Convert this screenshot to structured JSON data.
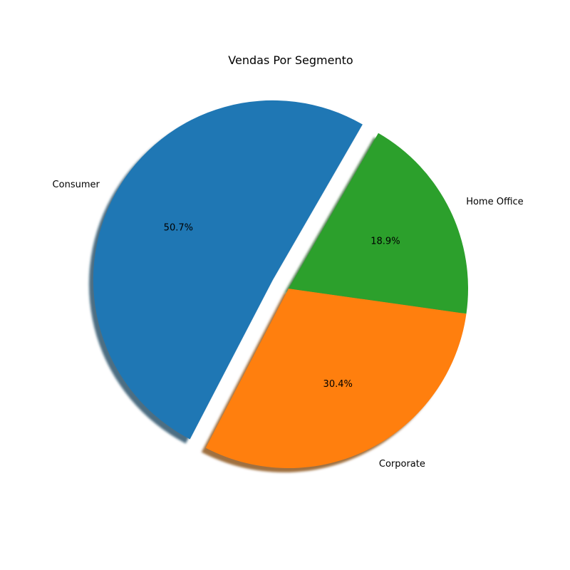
{
  "chart_data": {
    "type": "pie",
    "title": "Vendas Por Segmento",
    "start_angle_deg": 60,
    "direction": "counterclockwise",
    "shadow": true,
    "slices": [
      {
        "label": "Consumer",
        "value": 50.7,
        "pct_label": "50.7%",
        "color": "#1f77b4",
        "exploded": true
      },
      {
        "label": "Corporate",
        "value": 30.4,
        "pct_label": "30.4%",
        "color": "#ff7f0e",
        "exploded": false
      },
      {
        "label": "Home Office",
        "value": 18.9,
        "pct_label": "18.9%",
        "color": "#2ca02c",
        "exploded": false
      }
    ]
  }
}
